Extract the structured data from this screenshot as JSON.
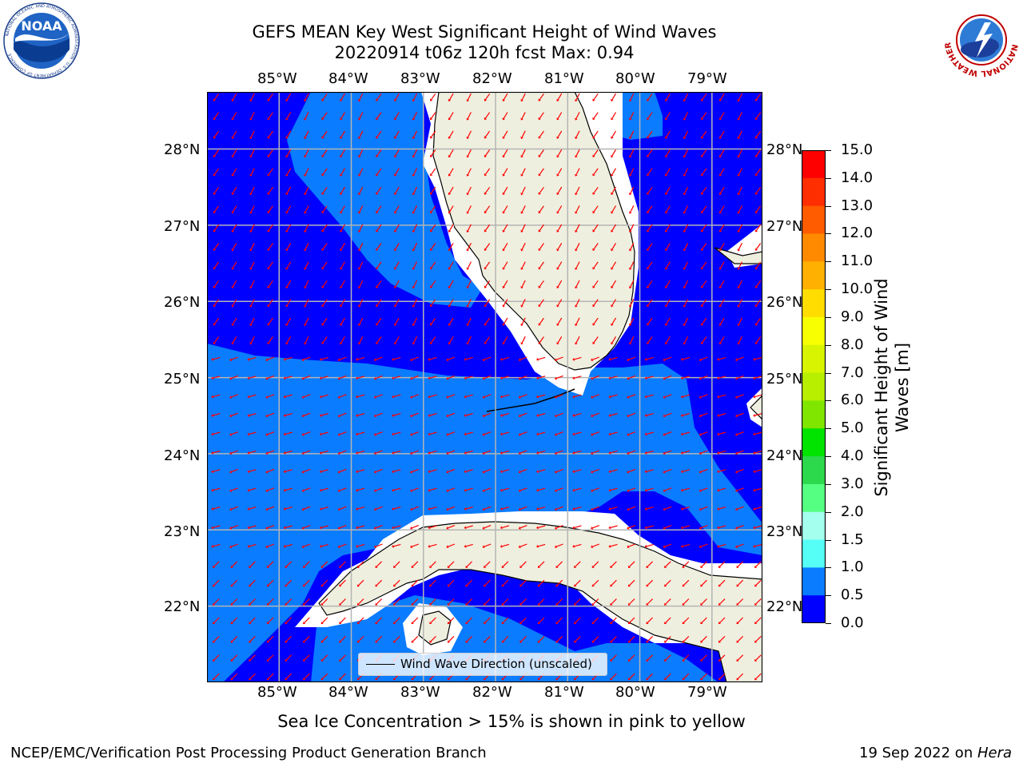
{
  "title": {
    "line1": "GEFS MEAN Key West Significant Height of Wind Waves",
    "line2": "20220914 t06z 120h fcst   Max: 0.94"
  },
  "map": {
    "lon_labels": [
      "85°W",
      "84°W",
      "83°W",
      "82°W",
      "81°W",
      "80°W",
      "79°W"
    ],
    "lat_labels": [
      "28°N",
      "27°N",
      "26°N",
      "25°N",
      "24°N",
      "23°N",
      "22°N"
    ],
    "lon_range": [
      -86.0,
      -78.3
    ],
    "lat_range": [
      21.0,
      28.75
    ],
    "legend_label": "Wind Wave Direction (unscaled)",
    "colors": {
      "ocean_low": "#0000ff",
      "ocean_mid": "#0a7cff",
      "land": "#efefdf",
      "arrow": "#ff0000",
      "grid": "#b0b0b0"
    }
  },
  "colorbar": {
    "label": "Significant Height of Wind Waves [m]",
    "ticks": [
      "15.0",
      "14.0",
      "13.0",
      "12.0",
      "11.0",
      "10.0",
      "9.0",
      "8.0",
      "7.0",
      "6.0",
      "5.0",
      "4.0",
      "3.0",
      "2.0",
      "1.5",
      "1.0",
      "0.5",
      "0.0"
    ],
    "colors_top_to_bottom": [
      "#ff0000",
      "#ff2400",
      "#ff4800",
      "#ff7000",
      "#ff9500",
      "#ffb800",
      "#ffdc00",
      "#ffff00",
      "#e0f800",
      "#c3f000",
      "#94ee00",
      "#5ddc00",
      "#00d700",
      "#00e800",
      "#55ff82",
      "#a4ffe0",
      "#55fff0",
      "#00ffff",
      "#00e0ff",
      "#0a7cff",
      "#0000ff"
    ]
  },
  "note": "Sea Ice Concentration > 15% is shown in pink to yellow",
  "footer": {
    "left": "NCEP/EMC/Verification Post Processing Product Generation Branch",
    "date": "19 Sep 2022 on ",
    "host": "Hera"
  },
  "logos": {
    "noaa": {
      "icon": "noaa-logo",
      "text": "NOAA",
      "ring_text": "NATIONAL OCEANIC AND ATMOSPHERIC ADMINISTRATION · U.S. DEPARTMENT OF COMMERCE"
    },
    "nws": {
      "icon": "nws-logo",
      "ring_text": "NATIONAL WEATHER SERVICE"
    }
  }
}
